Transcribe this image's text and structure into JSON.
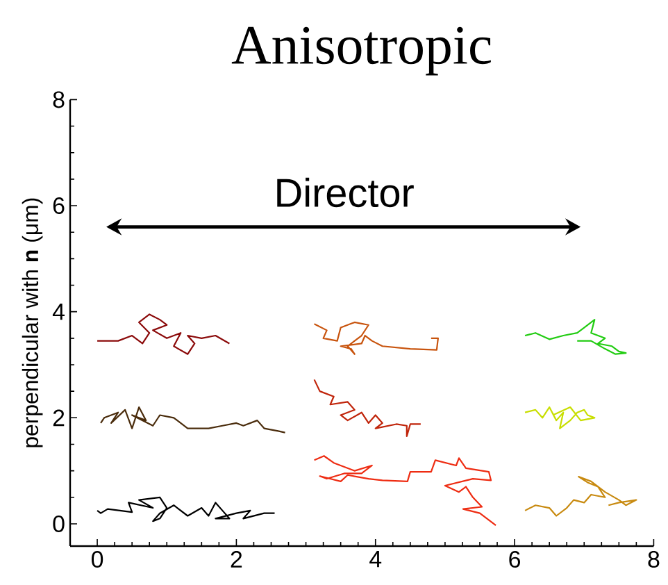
{
  "chart_data": {
    "type": "line",
    "title": "Anisotropic",
    "ylabel": "perpendicular with **n** (μm)",
    "annotations": [
      "Director"
    ],
    "xlim": [
      -0.39,
      8
    ],
    "ylim": [
      -0.42,
      8
    ],
    "xticks": [
      0,
      2,
      4,
      6,
      8
    ],
    "yticks": [
      0,
      2,
      4,
      6,
      8
    ],
    "series": [
      {
        "color": "#000000",
        "x": [
          0.0,
          0.05,
          0.15,
          0.5,
          0.45,
          0.8,
          0.6,
          0.9,
          1.0,
          0.9,
          0.8,
          0.9,
          1.1,
          1.3,
          1.5,
          1.6,
          1.7,
          1.8,
          1.9,
          1.7,
          2.0,
          2.2,
          2.1,
          2.4,
          2.55
        ],
        "values": [
          0.25,
          0.2,
          0.28,
          0.22,
          0.4,
          0.3,
          0.45,
          0.5,
          0.3,
          0.1,
          0.05,
          0.2,
          0.35,
          0.15,
          0.3,
          0.15,
          0.4,
          0.25,
          0.1,
          0.1,
          0.2,
          0.25,
          0.1,
          0.2,
          0.2
        ]
      },
      {
        "color": "#4a2c0c",
        "x": [
          0.05,
          0.1,
          0.3,
          0.2,
          0.4,
          0.5,
          0.6,
          0.7,
          0.5,
          0.8,
          0.9,
          1.1,
          1.3,
          1.6,
          1.8,
          2.0,
          2.1,
          2.3,
          2.4,
          2.6,
          2.7
        ],
        "values": [
          1.9,
          2.0,
          2.1,
          1.9,
          2.15,
          1.8,
          2.2,
          1.95,
          2.05,
          1.85,
          2.05,
          2.0,
          1.8,
          1.8,
          1.85,
          1.9,
          1.85,
          1.95,
          1.8,
          1.75,
          1.72
        ]
      },
      {
        "color": "#8b0a0a",
        "x": [
          0.0,
          0.3,
          0.5,
          0.65,
          0.75,
          0.6,
          0.75,
          0.9,
          1.0,
          0.8,
          1.0,
          1.2,
          1.1,
          1.3,
          1.4,
          1.3,
          1.5,
          1.7,
          1.9
        ],
        "values": [
          3.45,
          3.45,
          3.55,
          3.4,
          3.6,
          3.8,
          3.95,
          3.85,
          3.75,
          3.65,
          3.5,
          3.6,
          3.35,
          3.2,
          3.4,
          3.55,
          3.5,
          3.55,
          3.4
        ]
      },
      {
        "color": "#c8540e",
        "x": [
          3.12,
          3.3,
          3.25,
          3.45,
          3.5,
          3.7,
          3.9,
          3.8,
          3.6,
          3.7,
          3.65,
          3.5,
          3.8,
          3.85,
          3.95,
          4.1,
          4.5,
          4.88,
          4.9,
          4.8
        ],
        "values": [
          3.77,
          3.65,
          3.5,
          3.45,
          3.7,
          3.8,
          3.75,
          3.55,
          3.35,
          3.2,
          3.3,
          3.35,
          3.4,
          3.55,
          3.45,
          3.35,
          3.3,
          3.28,
          3.5,
          3.5
        ]
      },
      {
        "color": "#c0240a",
        "x": [
          3.12,
          3.2,
          3.4,
          3.35,
          3.6,
          3.7,
          3.5,
          3.6,
          3.8,
          3.9,
          4.0,
          4.1,
          4.0,
          4.3,
          4.45,
          4.45,
          4.5,
          4.65
        ],
        "values": [
          2.72,
          2.5,
          2.4,
          2.25,
          2.3,
          2.15,
          2.05,
          1.95,
          2.1,
          1.9,
          2.05,
          1.9,
          1.8,
          1.88,
          1.85,
          1.65,
          1.88,
          1.88
        ]
      },
      {
        "color": "#ee2c12",
        "x": [
          3.12,
          3.26,
          3.4,
          3.7,
          3.95,
          3.8,
          3.55,
          3.3,
          3.2,
          3.5,
          3.6,
          3.9,
          4.1,
          4.46,
          4.5,
          4.8,
          4.86,
          5.16,
          5.2,
          5.3,
          5.63,
          5.66,
          5.4,
          5.0,
          5.2,
          5.3,
          5.4,
          5.53,
          5.26,
          5.5,
          5.73
        ],
        "values": [
          1.2,
          1.28,
          1.15,
          1.0,
          1.1,
          0.95,
          0.95,
          0.85,
          0.9,
          0.8,
          0.92,
          0.85,
          0.82,
          0.8,
          0.98,
          0.98,
          1.2,
          1.1,
          1.24,
          1.05,
          0.98,
          0.82,
          0.85,
          0.72,
          0.6,
          0.7,
          0.5,
          0.32,
          0.28,
          0.2,
          -0.03
        ]
      },
      {
        "color": "#22cc12",
        "x": [
          6.15,
          6.3,
          6.5,
          6.7,
          6.9,
          7.0,
          7.15,
          7.1,
          7.3,
          7.2,
          7.4,
          7.5,
          7.6,
          7.45,
          7.3,
          7.1,
          6.9
        ],
        "values": [
          3.55,
          3.6,
          3.48,
          3.55,
          3.6,
          3.7,
          3.85,
          3.6,
          3.5,
          3.4,
          3.35,
          3.25,
          3.22,
          3.2,
          3.3,
          3.45,
          3.45
        ]
      },
      {
        "color": "#c8de00",
        "x": [
          6.15,
          6.3,
          6.4,
          6.5,
          6.6,
          6.7,
          6.65,
          6.8,
          6.9,
          7.0,
          7.05,
          7.15,
          6.95,
          6.8,
          6.55
        ],
        "values": [
          2.1,
          2.15,
          2.0,
          2.2,
          1.95,
          2.1,
          1.8,
          1.95,
          2.1,
          2.15,
          2.05,
          2.0,
          1.95,
          2.2,
          2.05
        ]
      },
      {
        "color": "#c88a10",
        "x": [
          6.15,
          6.3,
          6.5,
          6.6,
          6.75,
          6.85,
          7.0,
          7.1,
          7.3,
          7.2,
          7.05,
          6.92,
          7.1,
          7.3,
          7.5,
          7.6,
          7.75,
          7.5,
          7.35
        ],
        "values": [
          0.25,
          0.35,
          0.3,
          0.15,
          0.3,
          0.45,
          0.4,
          0.55,
          0.5,
          0.7,
          0.78,
          0.89,
          0.8,
          0.6,
          0.45,
          0.35,
          0.45,
          0.4,
          0.35
        ]
      }
    ]
  }
}
